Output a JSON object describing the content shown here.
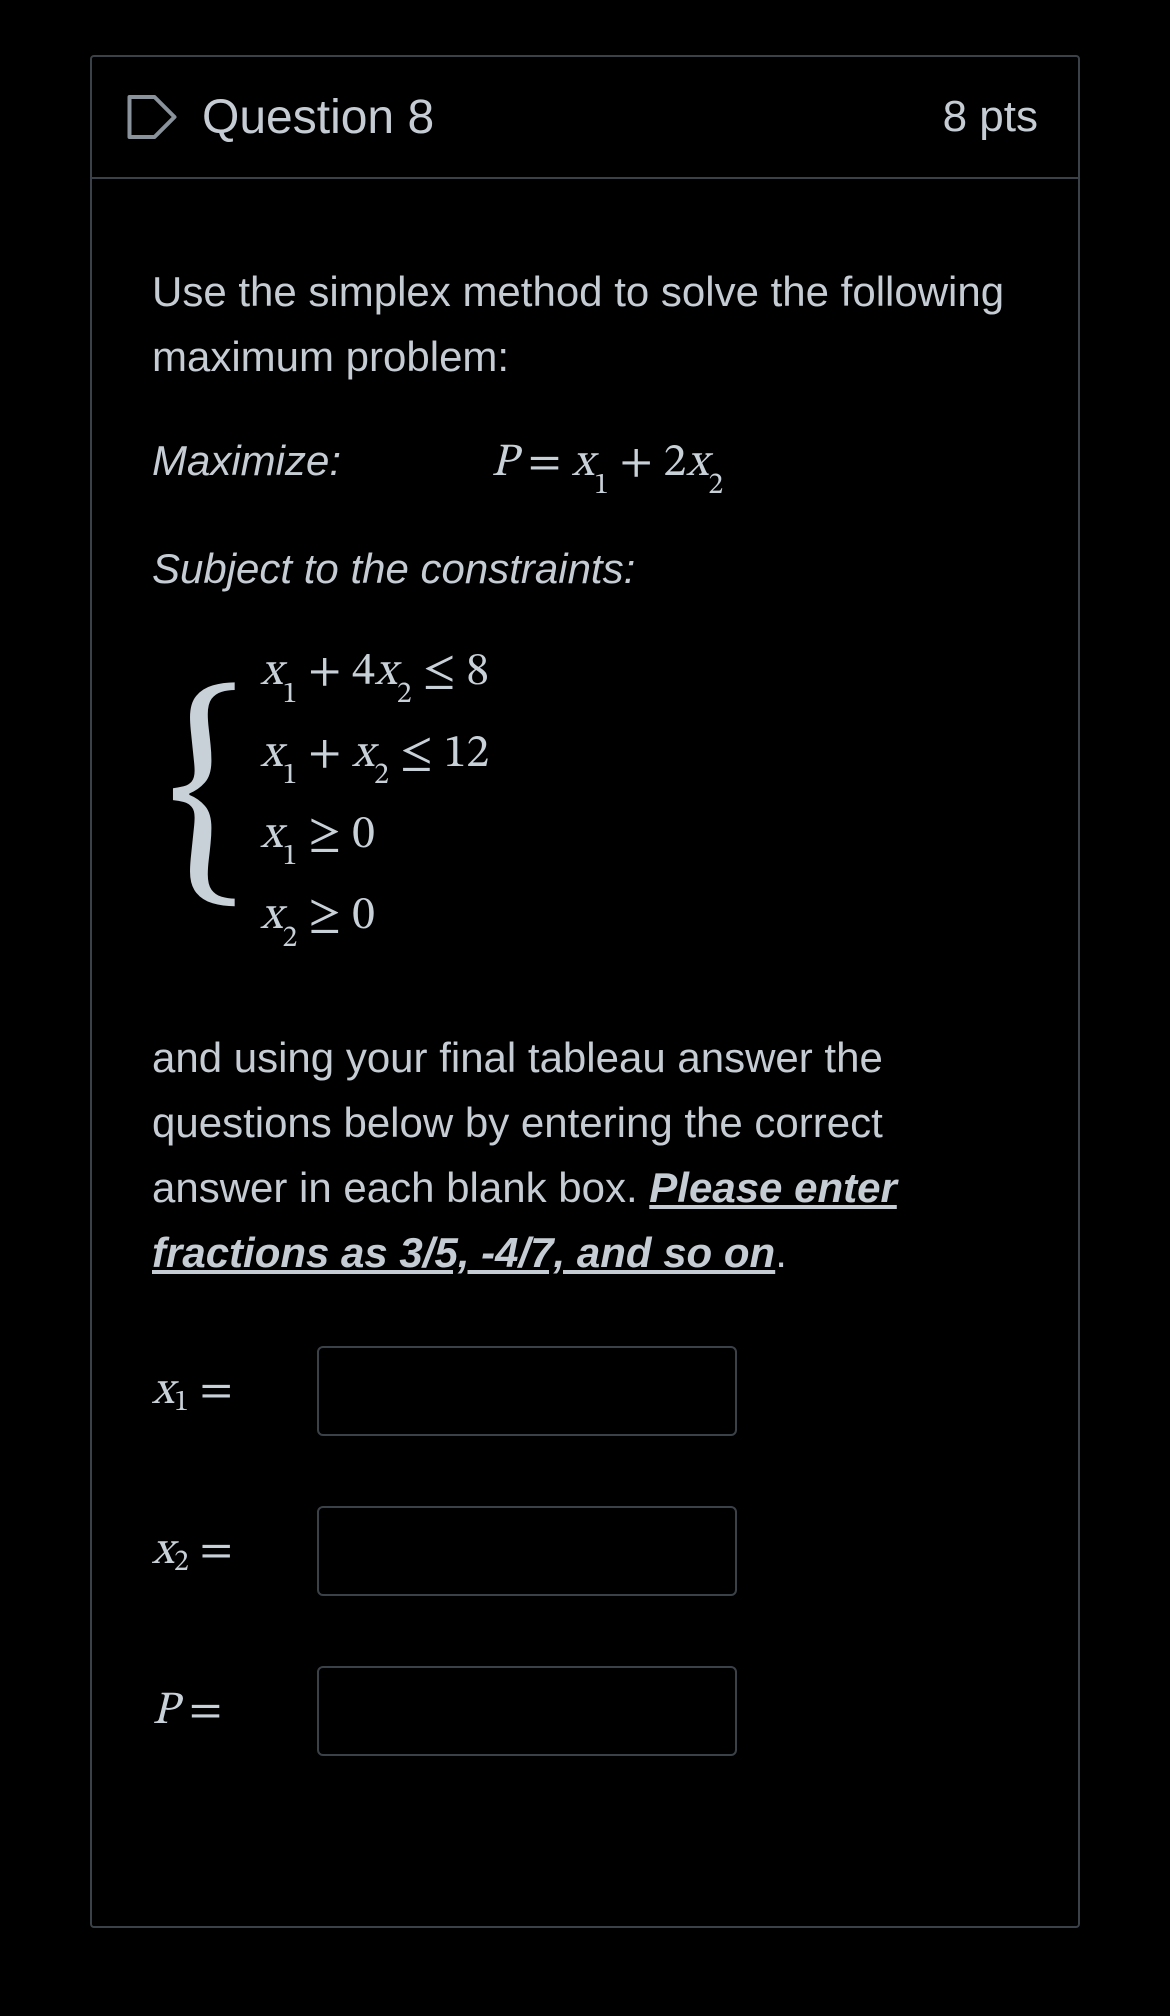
{
  "colors": {
    "background": "#000000",
    "border": "#3a4148",
    "text": "#c5ccd3",
    "math": "#c8d0d8"
  },
  "header": {
    "title": "Question 8",
    "points": "8 pts"
  },
  "body": {
    "intro": "Use the simplex method to solve the following maximum problem:",
    "maximize_label": "Maximize:",
    "objective_html": "<i>P</i> = <i>x</i><sub>1</sub> + 2<i>x</i><sub>2</sub>",
    "constraints_label": "Subject to the constraints:",
    "constraints": [
      "<i>x</i><sub>1</sub> + 4<i>x</i><sub>2</sub> ≤ 8",
      "<i>x</i><sub>1</sub> + <i>x</i><sub>2</sub> ≤ 12",
      "<i>x</i><sub>1</sub> ≥ 0",
      "<i>x</i><sub>2</sub> ≥ 0"
    ],
    "instructions_pre": "and using your final tableau answer the questions below by entering the correct answer in each blank box. ",
    "instructions_emph": "Please enter fractions as  3/5,  -4/7, and so on",
    "instructions_post": ".",
    "answers": [
      {
        "label_html": "<i>x</i><sub>1</sub>&nbsp;=",
        "value": ""
      },
      {
        "label_html": "<i>x</i><sub>2</sub>&nbsp;=",
        "value": ""
      },
      {
        "label_html": "<i>P</i>&nbsp;=",
        "value": ""
      }
    ]
  }
}
